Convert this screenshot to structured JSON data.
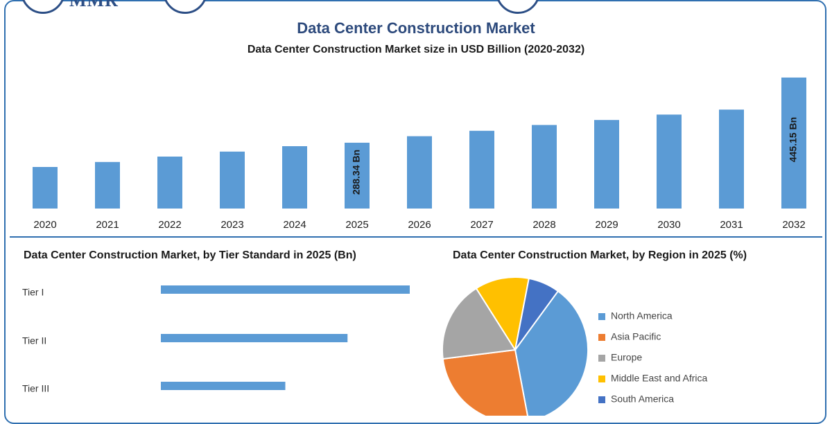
{
  "brand": {
    "logo_text": "MMR"
  },
  "colors": {
    "bar": "#5b9bd5",
    "border": "#2f6fb0",
    "title": "#2d4a7c"
  },
  "header": {
    "title": "Data Center Construction Market",
    "subtitle": "Data Center Construction Market size in USD Billion (2020-2032)"
  },
  "chart_data": [
    {
      "type": "bar",
      "orientation": "vertical",
      "categories": [
        "2020",
        "2021",
        "2022",
        "2023",
        "2024",
        "2025",
        "2026",
        "2027",
        "2028",
        "2029",
        "2030",
        "2031",
        "2032"
      ],
      "values": [
        230,
        242,
        255,
        267,
        280,
        288.34,
        304,
        317,
        331,
        343,
        356,
        368,
        445.15
      ],
      "data_labels": [
        {
          "category": "2025",
          "text": "288.34 Bn"
        },
        {
          "category": "2032",
          "text": "445.15 Bn"
        }
      ],
      "ylim": [
        130,
        460
      ],
      "grid": false,
      "legend": "none"
    },
    {
      "type": "bar",
      "orientation": "horizontal",
      "title": "Data Center Construction Market, by Tier Standard in 2025 (Bn)",
      "categories": [
        "Tier I",
        "Tier II",
        "Tier III"
      ],
      "values": [
        100,
        75,
        50
      ],
      "xlim": [
        0,
        100
      ],
      "grid": false,
      "legend": "none"
    },
    {
      "type": "pie",
      "title": "Data Center Construction Market, by Region in 2025 (%)",
      "labels": [
        "North America",
        "Asia Pacific",
        "Europe",
        "Middle East and Africa",
        "South America"
      ],
      "values": [
        37,
        26,
        18,
        12,
        7
      ],
      "colors": [
        "#5b9bd5",
        "#ed7d31",
        "#a5a5a5",
        "#ffc000",
        "#4472c4"
      ],
      "legend": "right"
    }
  ]
}
